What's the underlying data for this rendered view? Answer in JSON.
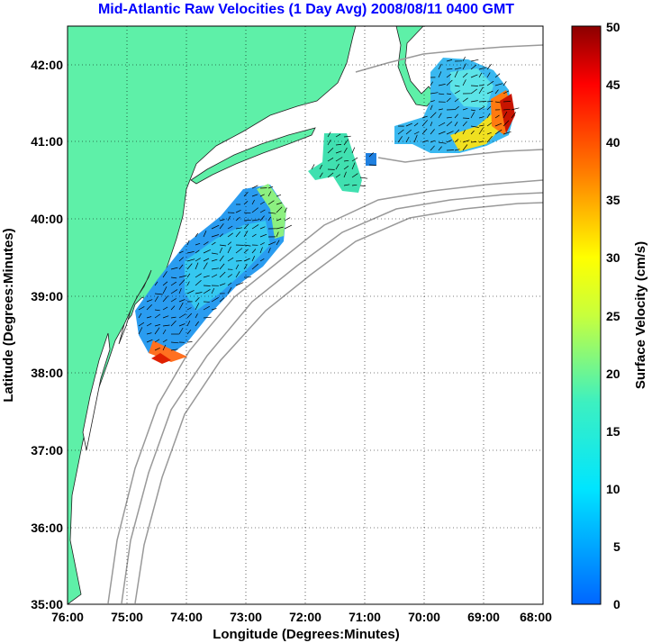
{
  "title": "Mid-Atlantic Raw Velocities (1 Day Avg) 2008/08/11 0400 GMT",
  "map": {
    "xlabel": "Longitude (Degrees:Minutes)",
    "ylabel": "Latitude (Degrees:Minutes)",
    "x_ticks": [
      "76:00",
      "75:00",
      "74:00",
      "73:00",
      "72:00",
      "71:00",
      "70:00",
      "69:00",
      "68:00"
    ],
    "y_ticks": [
      "42:00",
      "41:00",
      "40:00",
      "39:00",
      "38:00",
      "37:00",
      "36:00",
      "35:00"
    ],
    "lon_range": [
      -76,
      -68
    ],
    "lat_range": [
      35,
      42.5
    ],
    "grid": true,
    "land_color": "#5ef0a8",
    "bathymetry_color": "#999999"
  },
  "colorbar": {
    "label": "Surface Velocity (cm/s)",
    "ticks": [
      "0",
      "5",
      "10",
      "15",
      "20",
      "25",
      "30",
      "35",
      "40",
      "45",
      "50"
    ],
    "min": 0,
    "max": 50,
    "colormap": "jet"
  }
}
